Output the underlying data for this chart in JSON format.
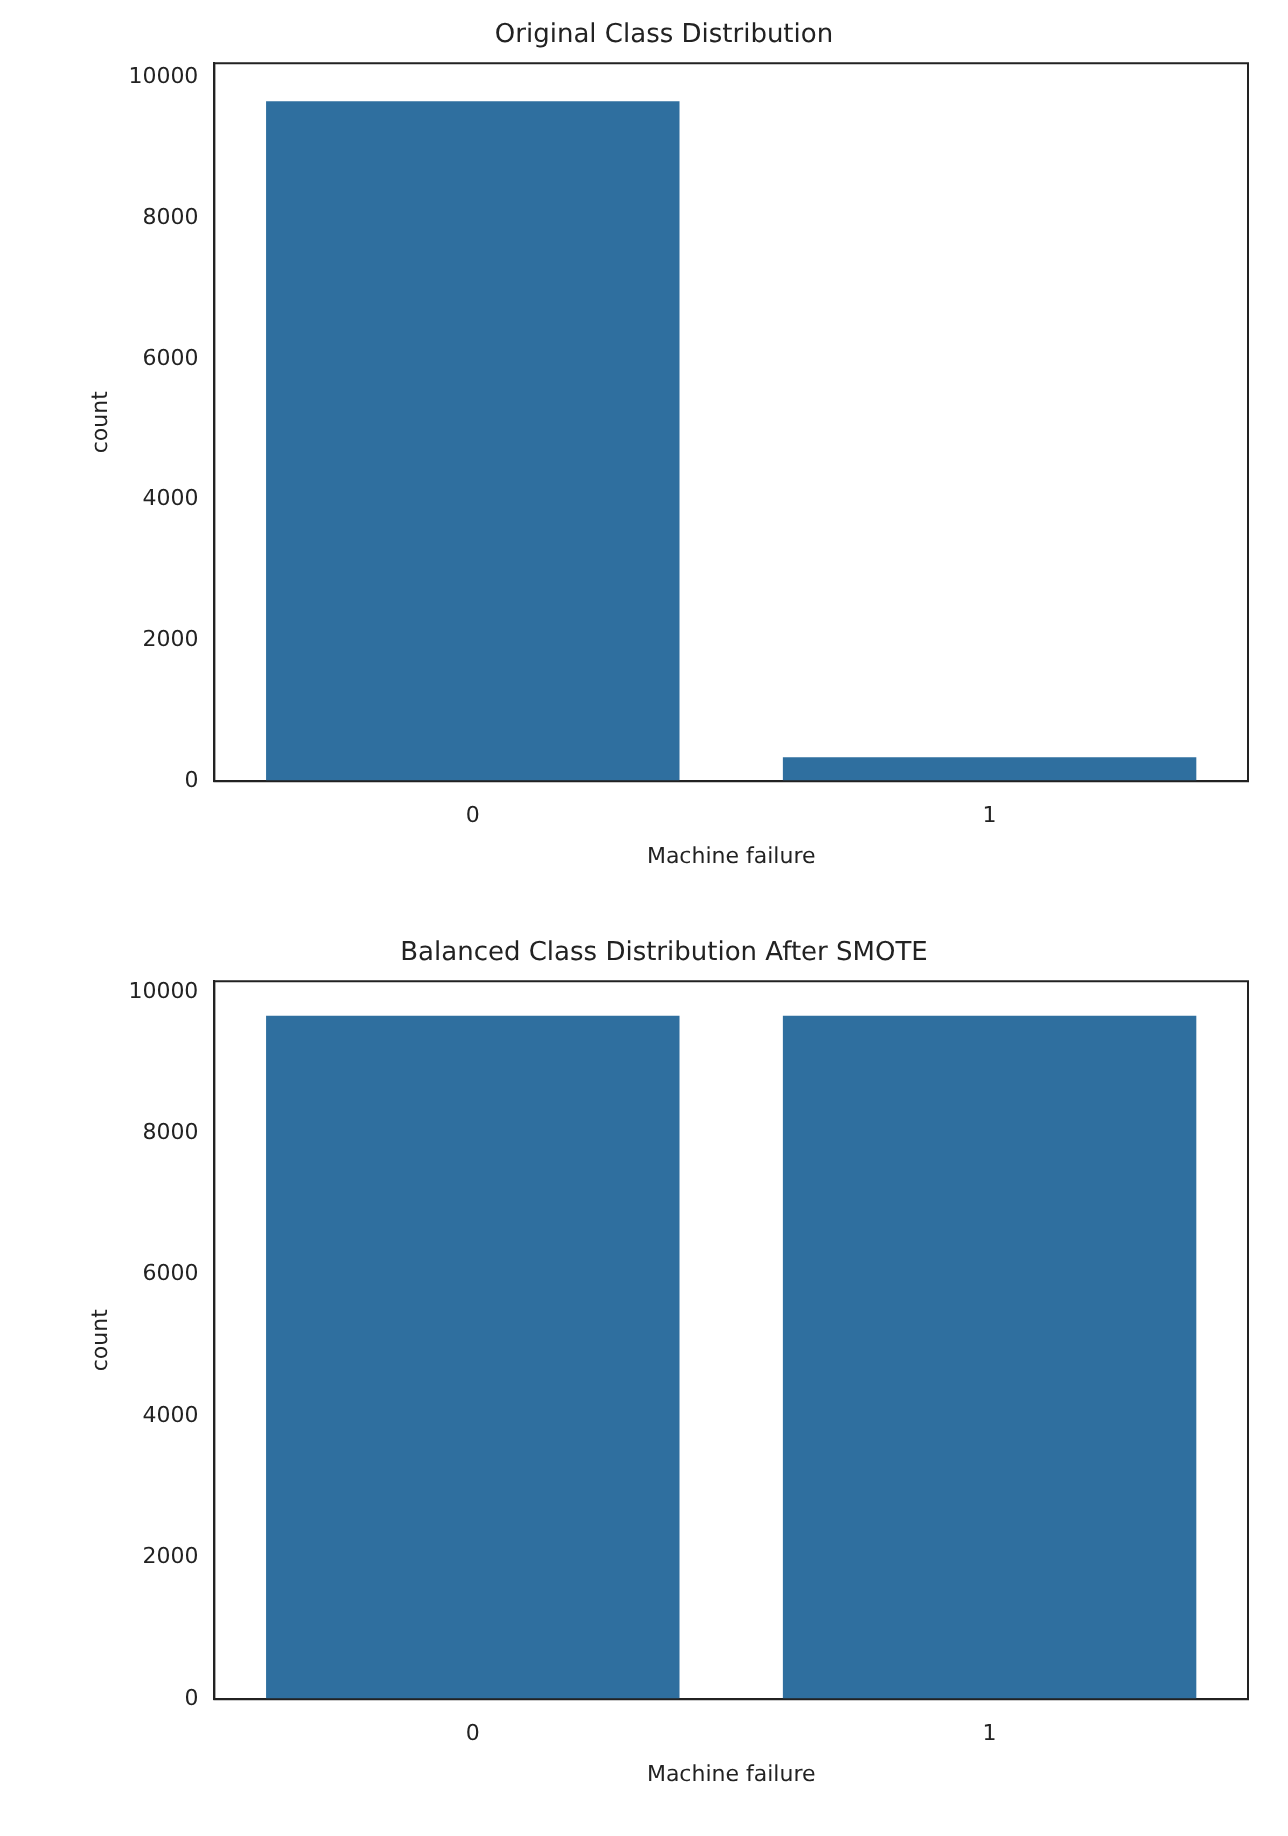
{
  "chart_data": [
    {
      "type": "bar",
      "title": "Original Class Distribution",
      "categories": [
        "0",
        "1"
      ],
      "values": [
        9660,
        340
      ],
      "color": "#2f6f9f",
      "xlabel": "Machine failure",
      "ylabel": "count",
      "ylim": [
        0,
        10200
      ],
      "yticks": [
        0,
        2000,
        4000,
        6000,
        8000,
        10000
      ],
      "grid": false
    },
    {
      "type": "bar",
      "title": "Balanced Class Distribution After SMOTE",
      "categories": [
        "0",
        "1"
      ],
      "values": [
        9660,
        9660
      ],
      "color": "#2f6f9f",
      "xlabel": "Machine failure",
      "ylabel": "count",
      "ylim": [
        0,
        10150
      ],
      "yticks": [
        0,
        2000,
        4000,
        6000,
        8000,
        10000
      ],
      "grid": false
    }
  ]
}
